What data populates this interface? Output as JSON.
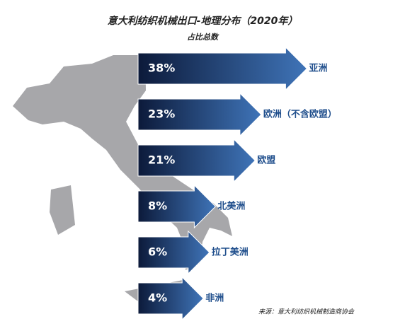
{
  "chart_data": {
    "type": "bar",
    "orientation": "horizontal",
    "title": "意大利纺织机械出口-地理分布（2020年）",
    "subtitle": "占比总数",
    "categories": [
      "亚洲",
      "欧洲（不含欧盟）",
      "欧盟",
      "北美洲",
      "拉丁美洲",
      "非洲"
    ],
    "values": [
      38,
      23,
      21,
      8,
      6,
      4
    ],
    "value_labels": [
      "38%",
      "23%",
      "21%",
      "8%",
      "6%",
      "4%"
    ],
    "colors": [
      "#0c1a3a",
      "#3f74b8"
    ],
    "source": "来源：意大利纺织机械制造商协会"
  }
}
